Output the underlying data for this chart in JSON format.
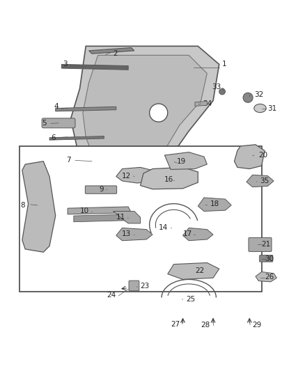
{
  "background_color": "#ffffff",
  "line_color": "#333333",
  "part_fill": "#dddddd",
  "part_edge": "#555555",
  "label_color": "#222222",
  "font_size": 7.5
}
